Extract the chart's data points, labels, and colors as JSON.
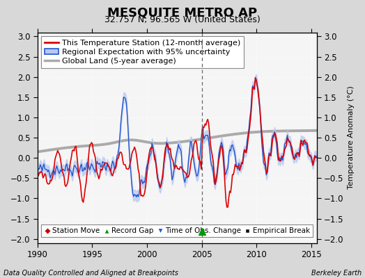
{
  "title": "MESQUITE METRO AP",
  "subtitle": "32.757 N, 96.565 W (United States)",
  "ylabel": "Temperature Anomaly (°C)",
  "xlabel_left": "Data Quality Controlled and Aligned at Breakpoints",
  "xlabel_right": "Berkeley Earth",
  "xlim": [
    1990,
    2015.5
  ],
  "ylim": [
    -2.1,
    3.1
  ],
  "yticks": [
    -2,
    -1.5,
    -1,
    -0.5,
    0,
    0.5,
    1,
    1.5,
    2,
    2.5,
    3
  ],
  "xticks": [
    1990,
    1995,
    2000,
    2005,
    2010,
    2015
  ],
  "bg_color": "#d8d8d8",
  "plot_bg_color": "#f5f5f5",
  "station_color": "#dd0000",
  "regional_color": "#2255cc",
  "regional_fill_color": "#b8c8f0",
  "global_color": "#aaaaaa",
  "vline_x": 2005.0,
  "record_gap_x": 2005.0,
  "title_fontsize": 13,
  "subtitle_fontsize": 9,
  "label_fontsize": 8,
  "tick_fontsize": 8.5,
  "legend_fontsize": 8,
  "marker_legend_fontsize": 7.5
}
